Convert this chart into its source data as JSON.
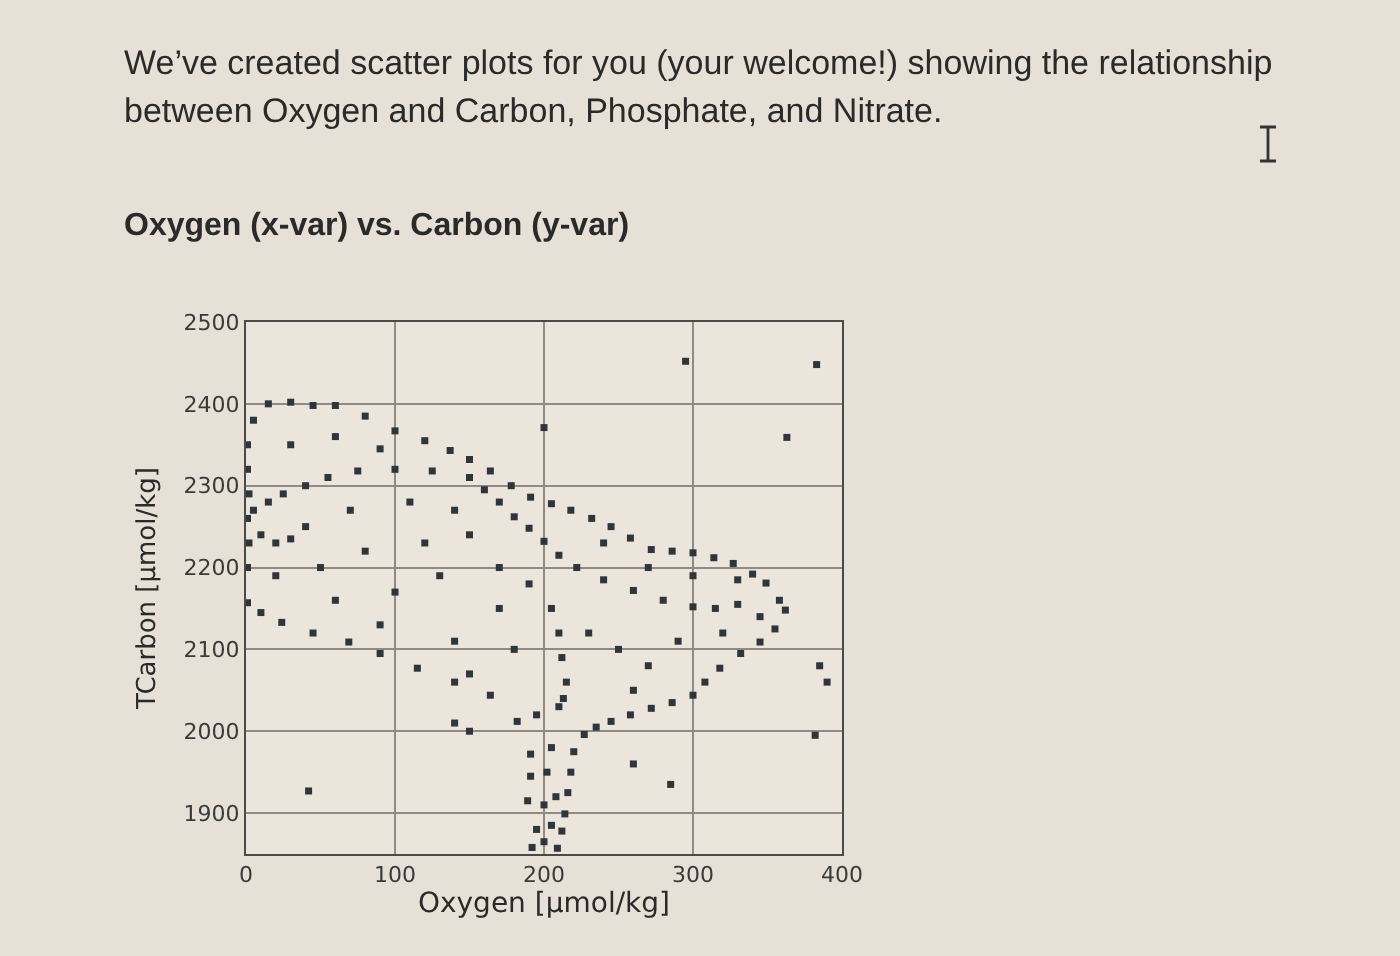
{
  "chart_data": {
    "type": "scatter",
    "title": "Oxygen (x-var) vs. Carbon (y-var)",
    "xlabel": "Oxygen [µmol/kg]",
    "ylabel": "TCarbon [µmol/kg]",
    "annotations": [
      "We’ve created scatter plots for you (your welcome!) showing the relationship between Oxygen and Carbon, Phosphate, and Nitrate."
    ],
    "x": [
      1,
      5,
      15,
      30,
      45,
      60,
      80,
      100,
      120,
      137,
      150,
      164,
      178,
      191,
      205,
      218,
      232,
      245,
      258,
      272,
      286,
      300,
      314,
      327,
      340,
      349,
      358,
      362,
      355,
      345,
      332,
      318,
      308,
      300,
      286,
      272,
      258,
      245,
      235,
      227,
      220,
      218,
      216,
      214,
      212,
      209,
      192,
      200,
      195,
      205,
      189,
      200,
      208,
      191,
      202,
      191,
      205,
      182,
      195,
      210,
      164,
      140,
      115,
      90,
      69,
      45,
      24,
      10,
      1,
      1,
      2,
      1,
      2,
      1,
      5,
      15,
      25,
      40,
      55,
      75,
      100,
      125,
      150,
      160,
      170,
      180,
      190,
      200,
      210,
      222,
      240,
      260,
      280,
      300,
      315,
      330,
      10,
      20,
      30,
      205,
      210,
      212,
      215,
      213,
      30,
      60,
      90,
      40,
      70,
      110,
      140,
      20,
      50,
      80,
      120,
      150,
      60,
      100,
      130,
      170,
      90,
      140,
      170,
      180,
      150,
      190,
      230,
      250,
      270,
      290,
      240,
      270,
      300,
      330,
      345,
      320,
      260,
      295,
      383,
      363,
      200,
      42,
      385,
      390,
      382,
      260,
      285,
      150,
      140
    ],
    "values": [
      2350,
      2380,
      2400,
      2402,
      2398,
      2398,
      2385,
      2367,
      2355,
      2343,
      2332,
      2318,
      2300,
      2286,
      2278,
      2270,
      2260,
      2250,
      2236,
      2222,
      2220,
      2218,
      2212,
      2205,
      2192,
      2181,
      2160,
      2148,
      2125,
      2109,
      2095,
      2077,
      2060,
      2044,
      2035,
      2028,
      2020,
      2012,
      2005,
      1996,
      1975,
      1950,
      1925,
      1899,
      1878,
      1857,
      1858,
      1865,
      1880,
      1885,
      1915,
      1910,
      1920,
      1945,
      1950,
      1972,
      1980,
      2012,
      2020,
      2030,
      2044,
      2060,
      2077,
      2095,
      2109,
      2120,
      2133,
      2145,
      2157,
      2200,
      2230,
      2260,
      2290,
      2320,
      2270,
      2280,
      2290,
      2300,
      2310,
      2318,
      2320,
      2318,
      2310,
      2295,
      2280,
      2262,
      2248,
      2232,
      2215,
      2200,
      2185,
      2172,
      2160,
      2152,
      2150,
      2155,
      2240,
      2230,
      2235,
      2150,
      2120,
      2090,
      2060,
      2040,
      2350,
      2360,
      2345,
      2250,
      2270,
      2280,
      2270,
      2190,
      2200,
      2220,
      2230,
      2240,
      2160,
      2170,
      2190,
      2200,
      2130,
      2110,
      2150,
      2100,
      2070,
      2180,
      2120,
      2100,
      2080,
      2110,
      2230,
      2200,
      2190,
      2185,
      2140,
      2120,
      2050,
      2452,
      2448,
      2359,
      2371,
      1927,
      2080,
      2060,
      1995,
      1960,
      1935,
      2000,
      2010
    ],
    "color": "#2e363b",
    "marker": "square",
    "xlim": [
      0,
      400
    ],
    "ylim": [
      1850,
      2500
    ],
    "xticks": [
      0,
      100,
      200,
      300,
      400
    ],
    "yticks": [
      1900,
      2000,
      2100,
      2200,
      2300,
      2400,
      2500
    ],
    "grid": true
  }
}
